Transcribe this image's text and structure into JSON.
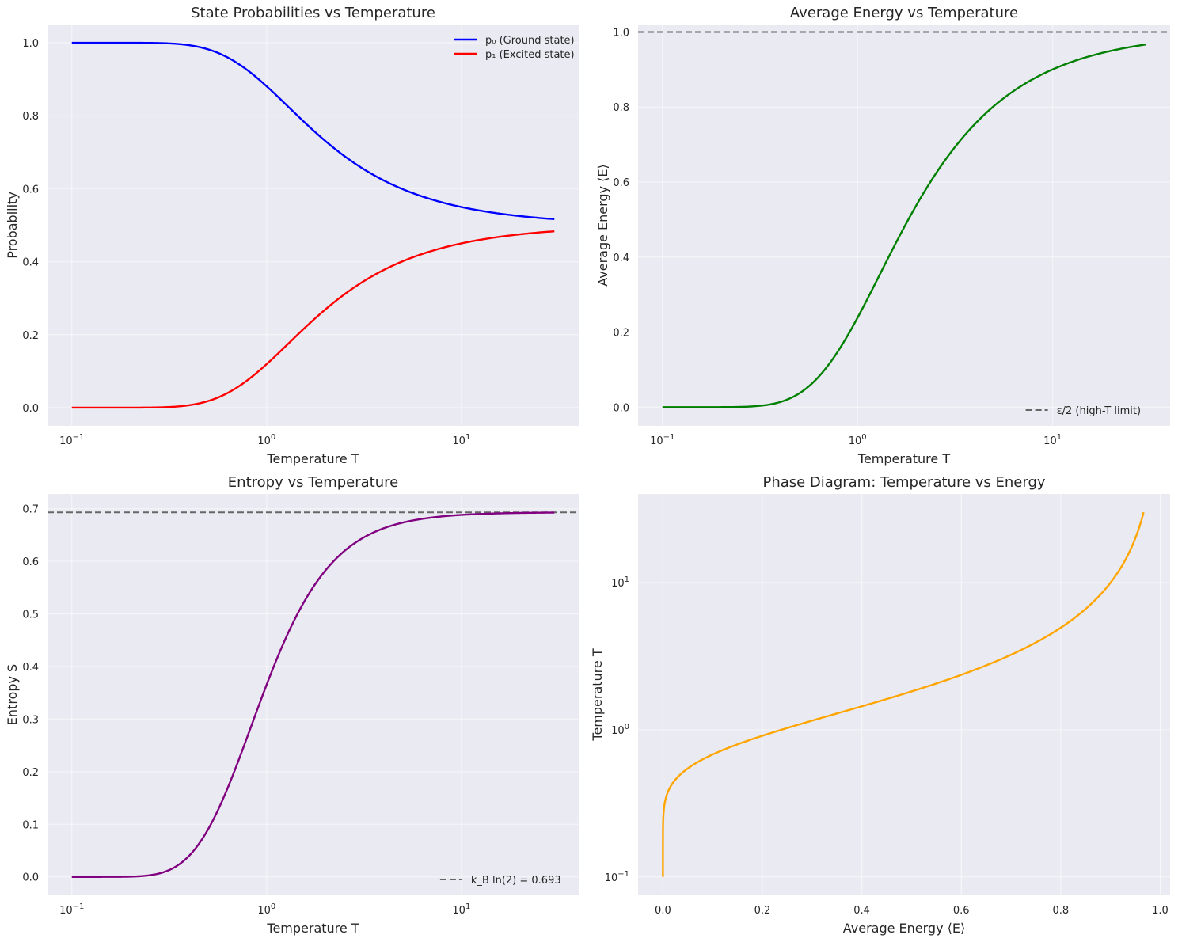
{
  "chart_data": [
    {
      "type": "line",
      "title": "State Probabilities vs Temperature",
      "xlabel": "Temperature T",
      "ylabel": "Probability",
      "xscale": "log",
      "xlim": [
        0.075,
        40
      ],
      "ylim": [
        -0.05,
        1.05
      ],
      "xticks": [
        {
          "v": 0.1,
          "b": "10",
          "e": "−1"
        },
        {
          "v": 1,
          "b": "10",
          "e": "0"
        },
        {
          "v": 10,
          "b": "10",
          "e": "1"
        }
      ],
      "yticks": [
        {
          "v": 0.0,
          "l": "0.0"
        },
        {
          "v": 0.2,
          "l": "0.2"
        },
        {
          "v": 0.4,
          "l": "0.4"
        },
        {
          "v": 0.6,
          "l": "0.6"
        },
        {
          "v": 0.8,
          "l": "0.8"
        },
        {
          "v": 1.0,
          "l": "1.0"
        }
      ],
      "legend_position": "upper-right",
      "series": [
        {
          "name": "p₀ (Ground state)",
          "color": "#0000ff",
          "model": "p0"
        },
        {
          "name": "p₁ (Excited state)",
          "color": "#ff0000",
          "model": "p1"
        }
      ],
      "x_range": [
        0.1,
        30
      ]
    },
    {
      "type": "line",
      "title": "Average Energy vs Temperature",
      "xlabel": "Temperature T",
      "ylabel": "Average Energy ⟨E⟩",
      "xscale": "log",
      "xlim": [
        0.075,
        40
      ],
      "ylim": [
        -0.05,
        1.02
      ],
      "xticks": [
        {
          "v": 0.1,
          "b": "10",
          "e": "−1"
        },
        {
          "v": 1,
          "b": "10",
          "e": "0"
        },
        {
          "v": 10,
          "b": "10",
          "e": "1"
        }
      ],
      "yticks": [
        {
          "v": 0.0,
          "l": "0.0"
        },
        {
          "v": 0.2,
          "l": "0.2"
        },
        {
          "v": 0.4,
          "l": "0.4"
        },
        {
          "v": 0.6,
          "l": "0.6"
        },
        {
          "v": 0.8,
          "l": "0.8"
        },
        {
          "v": 1.0,
          "l": "1.0"
        }
      ],
      "legend_position": "lower-right",
      "series": [
        {
          "name": "",
          "color": "#008000",
          "model": "energy"
        }
      ],
      "hline": {
        "y": 1.0,
        "name": "ε/2 (high-T limit)",
        "color": "#666666"
      },
      "x_range": [
        0.1,
        30
      ]
    },
    {
      "type": "line",
      "title": "Entropy vs Temperature",
      "xlabel": "Temperature T",
      "ylabel": "Entropy S",
      "xscale": "log",
      "xlim": [
        0.075,
        40
      ],
      "ylim": [
        -0.035,
        0.728
      ],
      "xticks": [
        {
          "v": 0.1,
          "b": "10",
          "e": "−1"
        },
        {
          "v": 1,
          "b": "10",
          "e": "0"
        },
        {
          "v": 10,
          "b": "10",
          "e": "1"
        }
      ],
      "yticks": [
        {
          "v": 0.0,
          "l": "0.0"
        },
        {
          "v": 0.1,
          "l": "0.1"
        },
        {
          "v": 0.2,
          "l": "0.2"
        },
        {
          "v": 0.3,
          "l": "0.3"
        },
        {
          "v": 0.4,
          "l": "0.4"
        },
        {
          "v": 0.5,
          "l": "0.5"
        },
        {
          "v": 0.6,
          "l": "0.6"
        },
        {
          "v": 0.7,
          "l": "0.7"
        }
      ],
      "legend_position": "lower-right",
      "series": [
        {
          "name": "",
          "color": "#800080",
          "model": "entropy"
        }
      ],
      "hline": {
        "y": 0.693,
        "name": "k_B ln(2) = 0.693",
        "color": "#666666"
      },
      "x_range": [
        0.1,
        30
      ]
    },
    {
      "type": "line",
      "title": "Phase Diagram: Temperature vs Energy",
      "xlabel": "Average Energy ⟨E⟩",
      "ylabel": "Temperature T",
      "yscale": "log",
      "xlim": [
        -0.05,
        1.02
      ],
      "ylim": [
        0.075,
        40
      ],
      "xticks": [
        {
          "v": 0.0,
          "l": "0.0"
        },
        {
          "v": 0.2,
          "l": "0.2"
        },
        {
          "v": 0.4,
          "l": "0.4"
        },
        {
          "v": 0.6,
          "l": "0.6"
        },
        {
          "v": 0.8,
          "l": "0.8"
        },
        {
          "v": 1.0,
          "l": "1.0"
        }
      ],
      "yticks": [
        {
          "v": 0.1,
          "b": "10",
          "e": "−1"
        },
        {
          "v": 1,
          "b": "10",
          "e": "0"
        },
        {
          "v": 10,
          "b": "10",
          "e": "1"
        }
      ],
      "series": [
        {
          "name": "",
          "color": "#ffa500",
          "model": "phase"
        }
      ],
      "x_range": [
        0.1,
        30
      ]
    }
  ]
}
